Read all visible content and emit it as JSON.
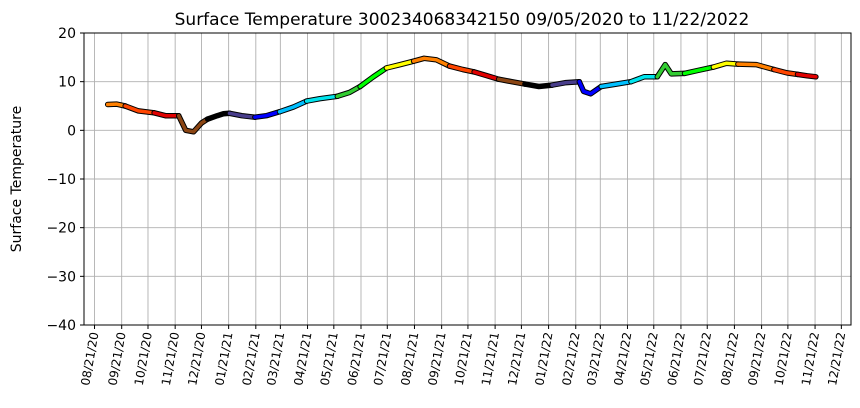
{
  "chart_data": {
    "type": "line",
    "title": "Surface Temperature 300234068342150  09/05/2020 to 11/22/2022",
    "ylabel": "Surface Temperature",
    "xlabel": "",
    "ylim": [
      -40,
      20
    ],
    "yticks": [
      -40,
      -30,
      -20,
      -10,
      0,
      10,
      20
    ],
    "xlim": [
      "2020-08-09",
      "2023-01-01"
    ],
    "xticks": [
      "08/21/20",
      "09/21/20",
      "10/21/20",
      "11/21/20",
      "12/21/20",
      "01/21/21",
      "02/21/21",
      "03/21/21",
      "04/21/21",
      "05/21/21",
      "06/21/21",
      "07/21/21",
      "08/21/21",
      "09/21/21",
      "10/21/21",
      "11/21/21",
      "12/21/21",
      "01/21/22",
      "02/21/22",
      "03/21/22",
      "04/21/22",
      "05/21/22",
      "06/21/22",
      "07/21/22",
      "08/21/22",
      "09/21/22",
      "10/21/22",
      "11/21/22",
      "12/21/22"
    ],
    "grid": true,
    "series": [
      {
        "color": "#ff8000",
        "x": [
          "2020-09-05",
          "2020-09-15",
          "2020-09-25"
        ],
        "y": [
          5.3,
          5.4,
          5.0
        ]
      },
      {
        "color": "#ff4500",
        "x": [
          "2020-09-25",
          "2020-10-10",
          "2020-10-28"
        ],
        "y": [
          5.0,
          4.0,
          3.6
        ]
      },
      {
        "color": "#e00000",
        "x": [
          "2020-10-28",
          "2020-11-10",
          "2020-11-25"
        ],
        "y": [
          3.6,
          3.0,
          3.0
        ]
      },
      {
        "color": "#8b4513",
        "x": [
          "2020-11-25",
          "2020-12-03",
          "2020-12-12",
          "2020-12-21",
          "2020-12-28"
        ],
        "y": [
          3.0,
          0.0,
          -0.3,
          1.5,
          2.3
        ]
      },
      {
        "color": "#000000",
        "x": [
          "2020-12-28",
          "2021-01-08",
          "2021-01-15",
          "2021-01-22"
        ],
        "y": [
          2.3,
          3.0,
          3.4,
          3.5
        ]
      },
      {
        "color": "#483d8b",
        "x": [
          "2021-01-22",
          "2021-02-05",
          "2021-02-20"
        ],
        "y": [
          3.5,
          3.0,
          2.7
        ]
      },
      {
        "color": "#0000ff",
        "x": [
          "2021-02-20",
          "2021-03-05",
          "2021-03-20"
        ],
        "y": [
          2.7,
          3.0,
          3.8
        ]
      },
      {
        "color": "#00bfff",
        "x": [
          "2021-03-20",
          "2021-04-05",
          "2021-04-20"
        ],
        "y": [
          3.8,
          4.8,
          6.0
        ]
      },
      {
        "color": "#00e5ee",
        "x": [
          "2021-04-20",
          "2021-05-05",
          "2021-05-25"
        ],
        "y": [
          6.0,
          6.5,
          7.0
        ]
      },
      {
        "color": "#32cd32",
        "x": [
          "2021-05-25",
          "2021-06-08",
          "2021-06-20"
        ],
        "y": [
          7.0,
          7.8,
          9.0
        ]
      },
      {
        "color": "#00ff00",
        "x": [
          "2021-06-20",
          "2021-07-05",
          "2021-07-20"
        ],
        "y": [
          9.0,
          11.0,
          12.8
        ]
      },
      {
        "color": "#ffff00",
        "x": [
          "2021-07-20",
          "2021-08-05",
          "2021-08-20"
        ],
        "y": [
          12.8,
          13.5,
          14.2
        ]
      },
      {
        "color": "#ff8000",
        "x": [
          "2021-08-20",
          "2021-09-01",
          "2021-09-15",
          "2021-09-30"
        ],
        "y": [
          14.2,
          14.8,
          14.5,
          13.2
        ]
      },
      {
        "color": "#ff4500",
        "x": [
          "2021-09-30",
          "2021-10-15",
          "2021-10-28"
        ],
        "y": [
          13.2,
          12.5,
          12.0
        ]
      },
      {
        "color": "#e00000",
        "x": [
          "2021-10-28",
          "2021-11-10",
          "2021-11-25"
        ],
        "y": [
          12.0,
          11.3,
          10.5
        ]
      },
      {
        "color": "#8b4513",
        "x": [
          "2021-11-25",
          "2021-12-10",
          "2021-12-25"
        ],
        "y": [
          10.5,
          10.0,
          9.5
        ]
      },
      {
        "color": "#000000",
        "x": [
          "2021-12-25",
          "2022-01-10",
          "2022-01-25"
        ],
        "y": [
          9.5,
          9.0,
          9.3
        ]
      },
      {
        "color": "#483d8b",
        "x": [
          "2022-01-25",
          "2022-02-10",
          "2022-02-25"
        ],
        "y": [
          9.3,
          9.8,
          10.0
        ]
      },
      {
        "color": "#0000ff",
        "x": [
          "2022-02-25",
          "2022-03-02",
          "2022-03-10",
          "2022-03-22"
        ],
        "y": [
          10.0,
          8.0,
          7.5,
          9.0
        ]
      },
      {
        "color": "#00bfff",
        "x": [
          "2022-03-22",
          "2022-04-08",
          "2022-04-25"
        ],
        "y": [
          9.0,
          9.5,
          10.0
        ]
      },
      {
        "color": "#00e5ee",
        "x": [
          "2022-04-25",
          "2022-05-10",
          "2022-05-25"
        ],
        "y": [
          10.0,
          11.0,
          11.0
        ]
      },
      {
        "color": "#32cd32",
        "x": [
          "2022-05-25",
          "2022-06-03",
          "2022-06-10",
          "2022-06-25"
        ],
        "y": [
          11.0,
          13.5,
          11.6,
          11.7
        ]
      },
      {
        "color": "#00ff00",
        "x": [
          "2022-06-25",
          "2022-07-10",
          "2022-07-28"
        ],
        "y": [
          11.7,
          12.3,
          13.0
        ]
      },
      {
        "color": "#ffff00",
        "x": [
          "2022-07-28",
          "2022-08-12",
          "2022-08-25"
        ],
        "y": [
          13.0,
          13.8,
          13.6
        ]
      },
      {
        "color": "#ff8000",
        "x": [
          "2022-08-25",
          "2022-09-15",
          "2022-10-05"
        ],
        "y": [
          13.6,
          13.5,
          12.5
        ]
      },
      {
        "color": "#ff4500",
        "x": [
          "2022-10-05",
          "2022-10-20",
          "2022-11-01"
        ],
        "y": [
          12.5,
          11.8,
          11.5
        ]
      },
      {
        "color": "#e00000",
        "x": [
          "2022-11-01",
          "2022-11-12",
          "2022-11-22"
        ],
        "y": [
          11.5,
          11.2,
          11.0
        ]
      }
    ]
  }
}
